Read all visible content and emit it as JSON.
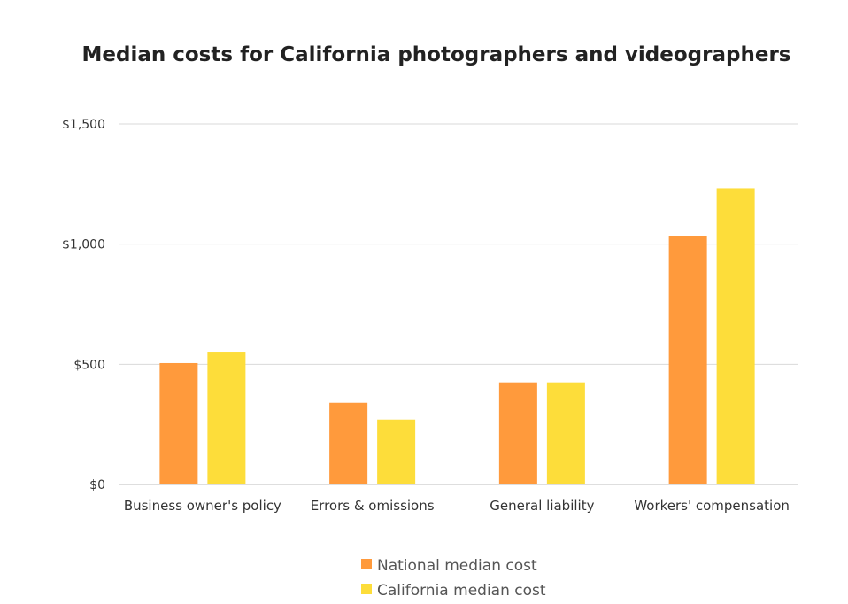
{
  "chart_data": {
    "type": "bar",
    "title": "Median costs for California photographers and videographers",
    "xlabel": "",
    "ylabel": "",
    "categories": [
      "Business owner's policy",
      "Errors & omissions",
      "General liability",
      "Workers' compensation"
    ],
    "series": [
      {
        "name": "National median cost",
        "values": [
          505,
          340,
          425,
          1033
        ],
        "color": "#FF9A3C"
      },
      {
        "name": "California median cost",
        "values": [
          549,
          270,
          425,
          1233
        ],
        "color": "#FDDD3A"
      }
    ],
    "ylim": [
      0,
      1500
    ],
    "yticks": [
      0,
      500,
      1000,
      1500
    ],
    "ytick_labels": [
      "$0",
      "$500",
      "$1,000",
      "$1,500"
    ],
    "grid": true,
    "legend_position": "bottom"
  }
}
